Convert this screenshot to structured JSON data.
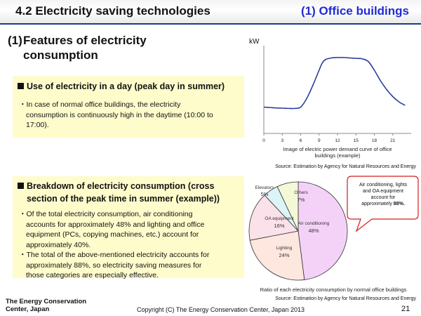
{
  "header": {
    "title_left": "4.2 Electricity saving technologies",
    "title_right": "(1) Office buildings"
  },
  "section": {
    "number": "(1)",
    "title_line1": "Features of electricity",
    "title_line2": "consumption"
  },
  "box1": {
    "heading": "Use of electricity in a day (peak day in summer)",
    "bullet_lines": [
      "・In case of normal office buildings, the electricity",
      "consumption is continuously high in the daytime (10:00 to",
      "17:00)."
    ]
  },
  "box2": {
    "heading_line1": "Breakdown of electricity consumption (cross",
    "heading_line2": "section of the peak time in summer (example))",
    "bullet1_lines": [
      "・Of the total electricity consumption, air conditioning",
      "accounts for approximately 48% and lighting and office",
      "equipment (PCs, copying machines, etc.) account for",
      "approximately 40%."
    ],
    "bullet2_lines": [
      "・The total of the above-mentioned electricity accounts for",
      "approximately 88%, so electricity saving measures for",
      "those categories are especially effective."
    ]
  },
  "chart_data": [
    {
      "type": "line",
      "ylabel": "kW",
      "x": [
        0,
        1,
        2,
        3,
        4,
        5,
        6,
        7,
        8,
        9,
        9.5,
        10,
        11,
        12,
        13,
        14,
        15,
        16,
        17,
        18,
        19,
        20,
        21,
        22,
        23
      ],
      "y": [
        30,
        29.5,
        29,
        28.8,
        28.5,
        28.5,
        30,
        40,
        55,
        72,
        80,
        84,
        86,
        86.5,
        86.5,
        86,
        85.5,
        85,
        82,
        72,
        60,
        50,
        42,
        36,
        32
      ],
      "x_ticks": [
        "0",
        "3",
        "6",
        "9",
        "12",
        "15",
        "18",
        "21"
      ],
      "xlim": [
        0,
        24
      ],
      "ylim": [
        0,
        100
      ],
      "caption_lines": [
        "Image of electric power demand curve of office",
        "buildings (example)"
      ],
      "source": "Source: Estimation by Agency for Natural Resources and Energy",
      "line_color": "#2b3d9c"
    },
    {
      "type": "pie",
      "slices": [
        {
          "label": "Air conditioning",
          "value": 48,
          "value_label": "48%",
          "color": "#f4d2f8"
        },
        {
          "label": "Lighting",
          "value": 24,
          "value_label": "24%",
          "color": "#fde7de"
        },
        {
          "label": "OA equipment",
          "value": 16,
          "value_label": "16%",
          "color": "#fbe1e9"
        },
        {
          "label": "Elevators",
          "value": 5,
          "value_label": "5%",
          "color": "#dcf3f8"
        },
        {
          "label": "Others",
          "value": 7,
          "value_label": "7%",
          "color": "#f3f9d6"
        }
      ],
      "callout_lines": [
        "Air conditioning, lights",
        "and OA equipment",
        "account for",
        "approximately ",
        "88%."
      ],
      "caption": "Ratio of each electricity consumption by normal office buildings",
      "source": "Source: Estimation by Agency for Natural Resources and Energy"
    }
  ],
  "footer": {
    "org_line1": "The Energy Conservation",
    "org_line2": "Center, Japan",
    "copyright": "Copyright (C) The Energy Conservation Center, Japan 2013",
    "page_number": "21"
  }
}
